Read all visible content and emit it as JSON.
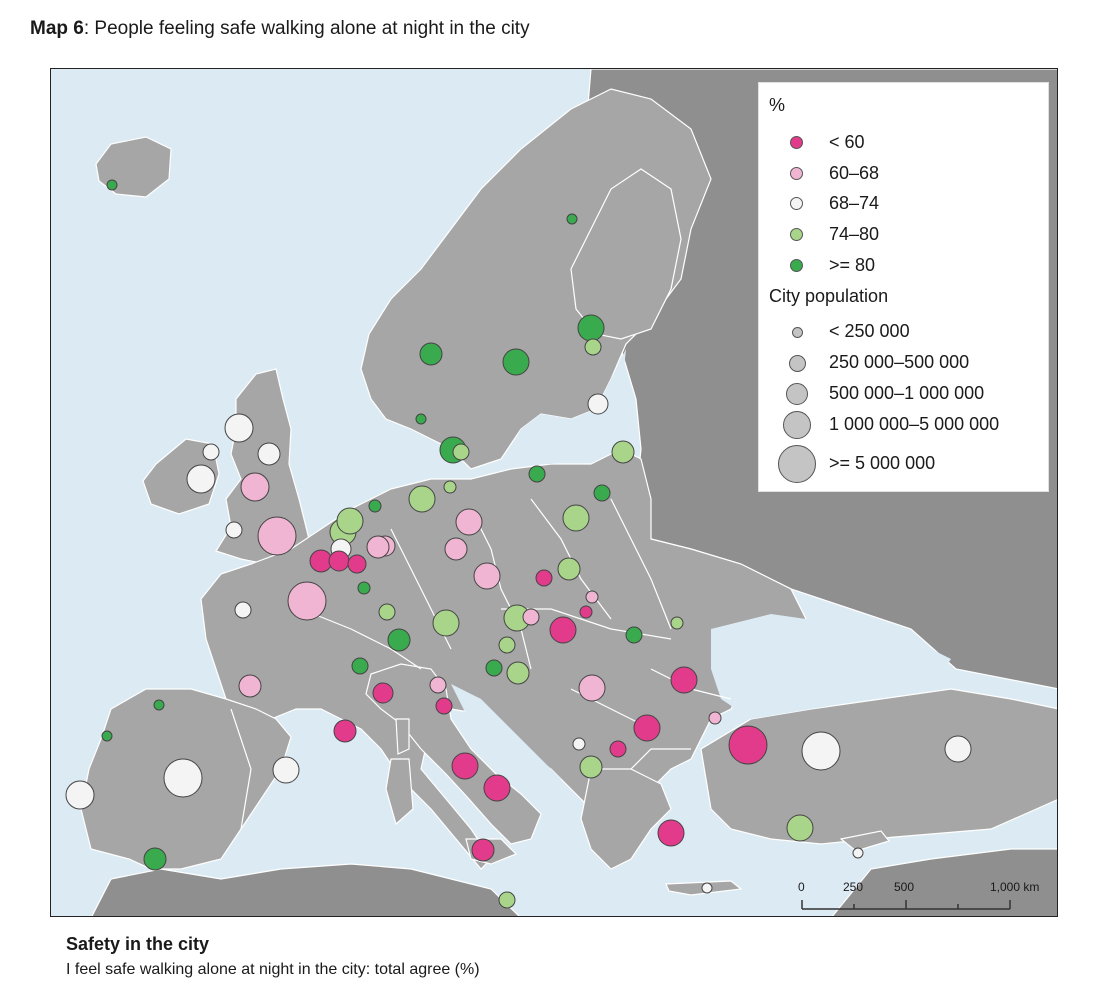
{
  "header": {
    "title_bold": "Map 6",
    "title_rest": ": People feeling safe walking alone at night in the city"
  },
  "legend": {
    "percent_heading": "%",
    "percent_classes": [
      {
        "label": "< 60",
        "color": "#e23b8b"
      },
      {
        "label": "60–68",
        "color": "#f0b5d2"
      },
      {
        "label": "68–74",
        "color": "#f4f4f4"
      },
      {
        "label": "74–80",
        "color": "#a9d58a"
      },
      {
        "label": ">= 80",
        "color": "#3aaa4e"
      }
    ],
    "population_heading": "City population",
    "population_classes": [
      {
        "label": "< 250 000"
      },
      {
        "label": "250 000–500 000"
      },
      {
        "label": "500 000–1 000 000"
      },
      {
        "label": "1 000 000–5 000 000"
      },
      {
        "label": ">= 5 000 000"
      }
    ]
  },
  "scale": {
    "ticks": [
      "0",
      "250",
      "500",
      "1,000 km"
    ]
  },
  "caption": {
    "title": "Safety in the city",
    "subtitle": "I feel safe walking alone at night in the city: total agree (%)"
  },
  "colors": {
    "sea": "#dcebf3",
    "land": "#a6a6a6",
    "land_outside": "#8f8f8f",
    "borders": "#ffffff"
  }
}
